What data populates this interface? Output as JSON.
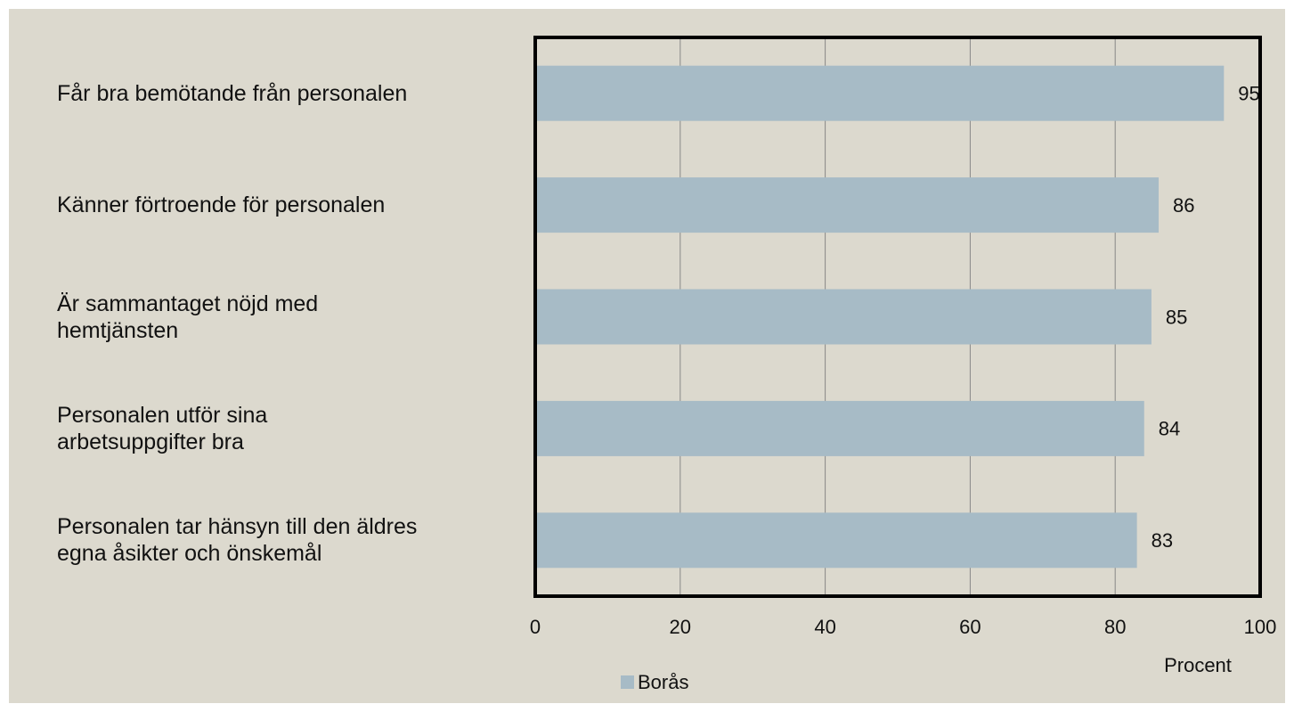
{
  "chart_data": {
    "type": "bar",
    "orientation": "horizontal",
    "categories": [
      "Får bra bemötande från personalen",
      "Känner förtroende för personalen",
      "Är sammantaget nöjd med\nhemtjänsten",
      "Personalen utför sina\narbetsuppgifter bra",
      "Personalen tar hänsyn till den äldres\negna åsikter och önskemål"
    ],
    "series": [
      {
        "name": "Borås",
        "color": "#a7bbc6",
        "values": [
          95,
          86,
          85,
          84,
          83
        ]
      }
    ],
    "xlim": [
      0,
      100
    ],
    "xticks": [
      0,
      20,
      40,
      60,
      80,
      100
    ],
    "xlabel": "Procent",
    "grid": true,
    "legend": "bottom"
  }
}
